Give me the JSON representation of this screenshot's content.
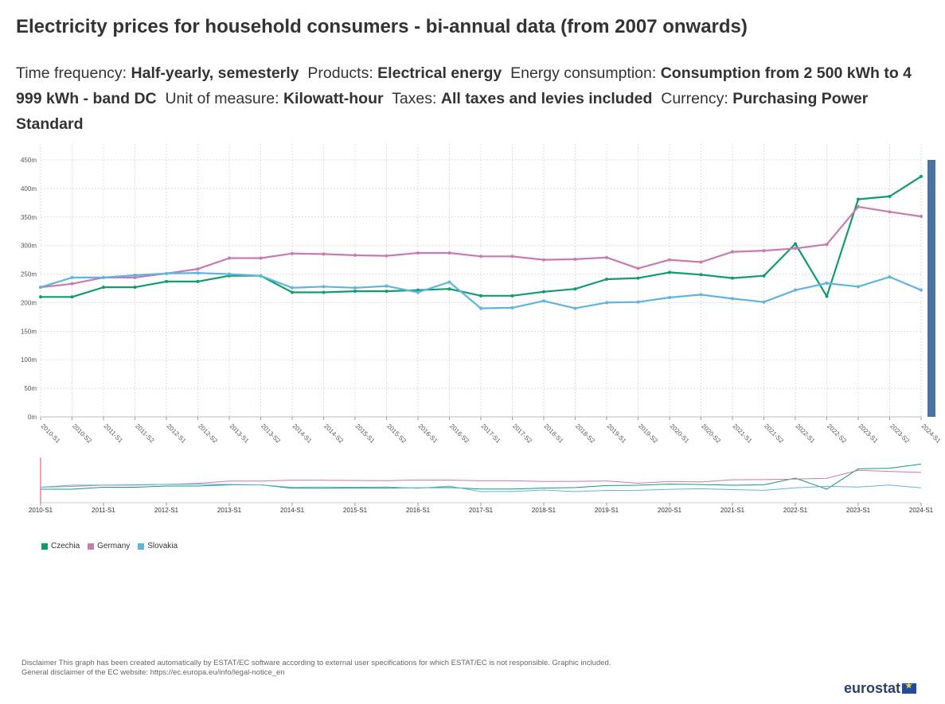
{
  "title": "Electricity prices for household consumers - bi-annual data (from 2007 onwards)",
  "filters": [
    {
      "label": "Time frequency:",
      "value": "Half-yearly, semesterly"
    },
    {
      "label": "Products:",
      "value": "Electrical energy"
    },
    {
      "label": "Energy consumption:",
      "value": "Consumption from 2 500 kWh to 4 999 kWh - band DC"
    },
    {
      "label": "Unit of measure:",
      "value": "Kilowatt-hour"
    },
    {
      "label": "Taxes:",
      "value": "All taxes and levies included"
    },
    {
      "label": "Currency:",
      "value": "Purchasing Power Standard"
    }
  ],
  "chart_data": {
    "type": "line",
    "x": [
      "2010-S1",
      "2010-S2",
      "2011-S1",
      "2011-S2",
      "2012-S1",
      "2012-S2",
      "2013-S1",
      "2013-S2",
      "2014-S1",
      "2014-S2",
      "2015-S1",
      "2015-S2",
      "2016-S1",
      "2016-S2",
      "2017-S1",
      "2017-S2",
      "2018-S1",
      "2018-S2",
      "2019-S1",
      "2019-S2",
      "2020-S1",
      "2020-S2",
      "2021-S1",
      "2021-S2",
      "2022-S1",
      "2022-S2",
      "2023-S1",
      "2023-S2",
      "2024-S1"
    ],
    "y_ticks": [
      "0m",
      "50m",
      "100m",
      "150m",
      "200m",
      "250m",
      "300m",
      "350m",
      "400m",
      "450m"
    ],
    "ylim": [
      0,
      450
    ],
    "grid": true,
    "legend_position": "bottom-left",
    "series": [
      {
        "name": "Czechia",
        "color": "#109c6e",
        "values": [
          210,
          210,
          227,
          227,
          237,
          237,
          247,
          247,
          218,
          218,
          220,
          220,
          222,
          224,
          212,
          212,
          219,
          224,
          241,
          243,
          253,
          249,
          243,
          247,
          303,
          211,
          381,
          386,
          421
        ]
      },
      {
        "name": "Germany",
        "color": "#c97ab0",
        "values": [
          227,
          233,
          244,
          244,
          251,
          259,
          278,
          278,
          286,
          285,
          283,
          282,
          287,
          287,
          281,
          281,
          275,
          276,
          279,
          260,
          275,
          271,
          289,
          291,
          295,
          302,
          368,
          359,
          351
        ]
      },
      {
        "name": "Slovakia",
        "color": "#5fb4e0",
        "values": [
          227,
          244,
          244,
          248,
          251,
          252,
          250,
          247,
          226,
          228,
          226,
          229,
          218,
          236,
          190,
          191,
          203,
          190,
          200,
          201,
          209,
          214,
          207,
          201,
          222,
          234,
          228,
          245,
          222
        ]
      }
    ],
    "navigator_ticks": [
      "2010-S1",
      "2011-S1",
      "2012-S1",
      "2013-S1",
      "2014-S1",
      "2015-S1",
      "2016-S1",
      "2017-S1",
      "2018-S1",
      "2019-S1",
      "2020-S1",
      "2021-S1",
      "2022-S1",
      "2023-S1",
      "2024-S1"
    ]
  },
  "disclaimer": {
    "line1": "Disclaimer This graph has been created automatically by ESTAT/EC software according to external user specifications for which ESTAT/EC is not responsible. Graphic included.",
    "line2": "General disclaimer of the EC website: https://ec.europa.eu/info/legal-notice_en"
  },
  "logo_text": "eurostat"
}
